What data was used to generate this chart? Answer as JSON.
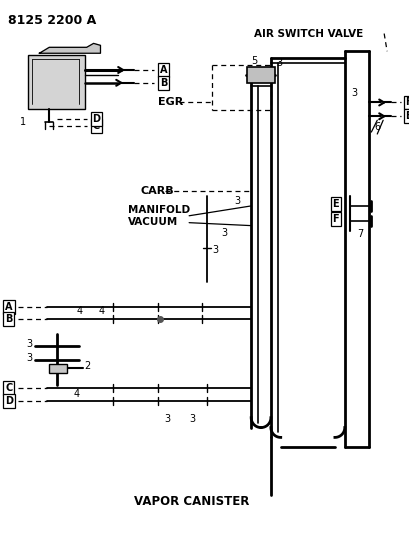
{
  "title": "8125 2200 A",
  "bg_color": "#ffffff",
  "lc": "#000000",
  "figsize": [
    4.1,
    5.33
  ],
  "dpi": 100,
  "labels": {
    "air_switch_valve": "AIR SWITCH VALVE",
    "egr": "EGR",
    "carb": "CARB",
    "manifold_vacuum": "MANIFOLD\nVACUUM",
    "vapor_canister": "VAPOR CANISTER",
    "title": "8125 2200 A"
  }
}
